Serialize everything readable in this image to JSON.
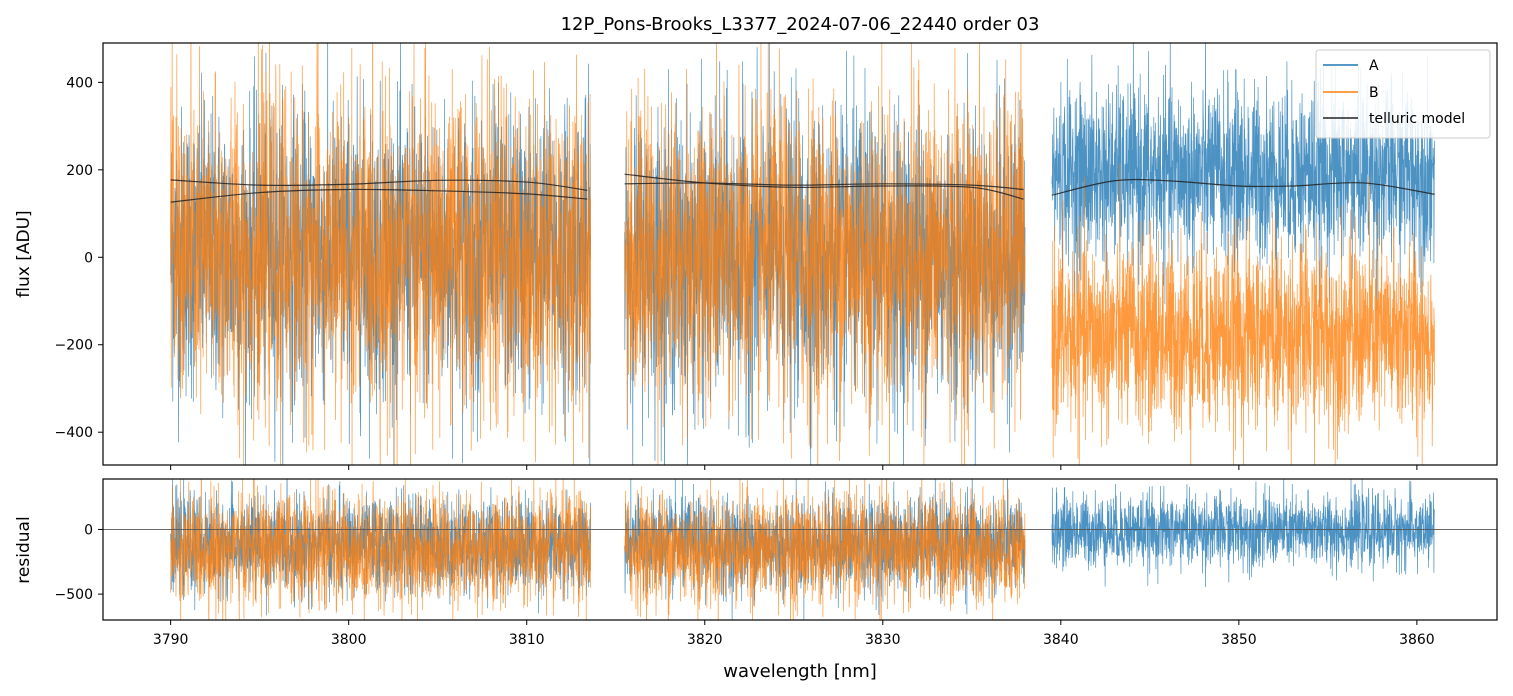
{
  "figure": {
    "title": "12P_Pons-Brooks_L3377_2024-07-06_22440  order 03"
  },
  "colors": {
    "A": "#1f77b4",
    "B": "#ff7f0e",
    "model": "#222222",
    "zero": "#555555"
  },
  "chart_data": [
    {
      "type": "line",
      "panel": "flux",
      "title": "12P_Pons-Brooks_L3377_2024-07-06_22440  order 03",
      "xlabel": "",
      "ylabel": "flux [ADU]",
      "xlim": [
        3786.2,
        3864.5
      ],
      "ylim": [
        -475,
        490
      ],
      "xticks": [
        3790,
        3800,
        3810,
        3820,
        3830,
        3840,
        3850,
        3860
      ],
      "yticks": [
        -400,
        -200,
        0,
        200,
        400
      ],
      "legend": {
        "placement": "upper right",
        "entries": [
          "A",
          "B",
          "telluric model"
        ]
      },
      "segments": [
        {
          "range": [
            3790.0,
            3813.6
          ],
          "A_center": 10,
          "A_spread": 165,
          "B_center": 5,
          "B_spread": 185,
          "model_A": [
            [
              3790,
              126
            ],
            [
              3795,
              148
            ],
            [
              3800,
              155
            ],
            [
              3805,
              152
            ],
            [
              3810,
              145
            ],
            [
              3813.4,
              133
            ]
          ],
          "model_B": [
            [
              3790,
              177
            ],
            [
              3795,
              165
            ],
            [
              3800,
              167
            ],
            [
              3805,
              176
            ],
            [
              3810,
              172
            ],
            [
              3813.4,
              153
            ]
          ]
        },
        {
          "range": [
            3815.5,
            3838.0
          ],
          "A_center": 0,
          "A_spread": 165,
          "B_center": 5,
          "B_spread": 180,
          "model_A": [
            [
              3815.5,
              190
            ],
            [
              3820,
              170
            ],
            [
              3825,
              160
            ],
            [
              3830,
              163
            ],
            [
              3835,
              160
            ],
            [
              3837.9,
              133
            ]
          ],
          "model_B": [
            [
              3815.5,
              168
            ],
            [
              3820,
              170
            ],
            [
              3825,
              165
            ],
            [
              3830,
              168
            ],
            [
              3835,
              165
            ],
            [
              3837.9,
              155
            ]
          ]
        },
        {
          "range": [
            3839.5,
            3861.0
          ],
          "A_center": 190,
          "A_spread": 100,
          "B_center": -180,
          "B_spread": 110,
          "model_A": [
            [
              3839.5,
              142
            ],
            [
              3843,
              175
            ],
            [
              3846,
              175
            ],
            [
              3850,
              163
            ],
            [
              3853,
              163
            ],
            [
              3857,
              170
            ],
            [
              3861,
              144
            ]
          ]
        }
      ],
      "series": [
        {
          "name": "A"
        },
        {
          "name": "B"
        },
        {
          "name": "telluric model"
        }
      ]
    },
    {
      "type": "line",
      "panel": "residual",
      "xlabel": "wavelength [nm]",
      "ylabel": "residual",
      "xlim": [
        3786.2,
        3864.5
      ],
      "ylim": [
        -700,
        390
      ],
      "xticks": [
        3790,
        3800,
        3810,
        3820,
        3830,
        3840,
        3850,
        3860
      ],
      "yticks": [
        -500,
        0
      ],
      "zero_line": 0,
      "segments": [
        {
          "range": [
            3790.0,
            3813.6
          ],
          "A_center": -120,
          "A_spread": 180,
          "B_center": -150,
          "B_spread": 220
        },
        {
          "range": [
            3815.5,
            3838.0
          ],
          "A_center": -120,
          "A_spread": 180,
          "B_center": -150,
          "B_spread": 215
        },
        {
          "range": [
            3839.5,
            3861.0
          ],
          "A_center": -10,
          "A_spread": 140
        }
      ],
      "series": [
        {
          "name": "A"
        },
        {
          "name": "B"
        }
      ]
    }
  ]
}
